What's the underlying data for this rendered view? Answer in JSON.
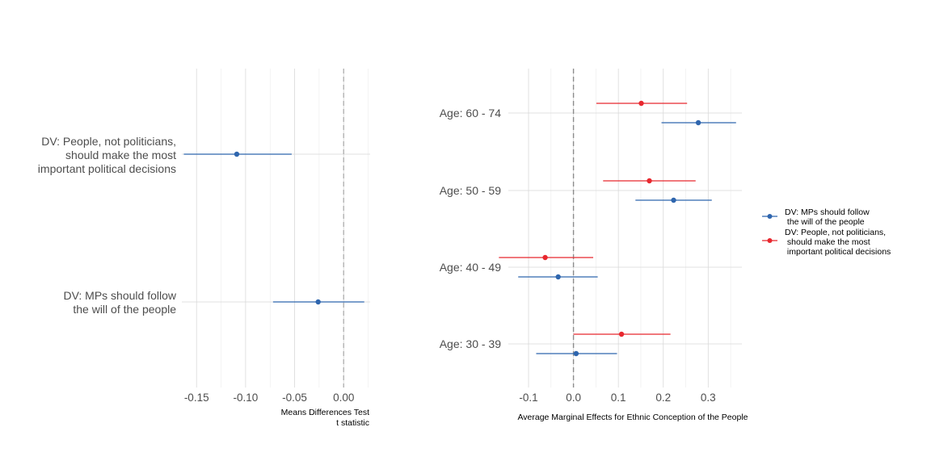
{
  "chart_data": [
    {
      "type": "scatter",
      "subtype": "coefficient-plot-horizontal",
      "xlabel": [
        "Means Differences Test",
        "t statistic"
      ],
      "xlim": [
        -0.165,
        0.027
      ],
      "xticks": [
        -0.15,
        -0.1,
        -0.05,
        0.0
      ],
      "xtick_labels": [
        "-0.15",
        "-0.10",
        "-0.05",
        "0.00"
      ],
      "reference_line": 0,
      "grid": true,
      "categories": [
        [
          "DV: People, not politicians,",
          "should make the most",
          "important political decisions"
        ],
        [
          "DV: MPs should follow",
          "the will of the people"
        ]
      ],
      "series": [
        {
          "color": "#2f66ae",
          "points": [
            {
              "category": 0,
              "estimate": -0.109,
              "low": -0.163,
              "high": -0.053
            },
            {
              "category": 1,
              "estimate": -0.026,
              "low": -0.072,
              "high": 0.021
            }
          ]
        }
      ]
    },
    {
      "type": "scatter",
      "subtype": "coefficient-plot-horizontal",
      "xlabel": "Average Marginal Effects for Ethnic Conception of the People",
      "xlim": [
        -0.145,
        0.375
      ],
      "xticks": [
        -0.1,
        0.0,
        0.1,
        0.2,
        0.3
      ],
      "xtick_labels": [
        "-0.1",
        "0.0",
        "0.1",
        "0.2",
        "0.3"
      ],
      "reference_line": 0,
      "grid": true,
      "categories": [
        "Age: 60 - 74",
        "Age: 50 - 59",
        "Age: 40 - 49",
        "Age: 30 - 39"
      ],
      "legend_position": "right",
      "series": [
        {
          "name": [
            "DV: MPs should follow",
            " the will of the people"
          ],
          "color": "#2f66ae",
          "points": [
            {
              "category": "Age: 60 - 74",
              "estimate": 0.278,
              "low": 0.196,
              "high": 0.362
            },
            {
              "category": "Age: 50 - 59",
              "estimate": 0.223,
              "low": 0.138,
              "high": 0.308
            },
            {
              "category": "Age: 40 - 49",
              "estimate": -0.034,
              "low": -0.123,
              "high": 0.054
            },
            {
              "category": "Age: 30 - 39",
              "estimate": 0.006,
              "low": -0.083,
              "high": 0.097
            }
          ]
        },
        {
          "name": [
            "DV: People, not politicians,",
            " should make the most",
            " important political decisions"
          ],
          "color": "#e8282f",
          "points": [
            {
              "category": "Age: 60 - 74",
              "estimate": 0.151,
              "low": 0.051,
              "high": 0.253
            },
            {
              "category": "Age: 50 - 59",
              "estimate": 0.169,
              "low": 0.066,
              "high": 0.272
            },
            {
              "category": "Age: 40 - 49",
              "estimate": -0.063,
              "low": -0.166,
              "high": 0.044
            },
            {
              "category": "Age: 30 - 39",
              "estimate": 0.107,
              "low": 0.0,
              "high": 0.216
            }
          ]
        }
      ]
    }
  ]
}
